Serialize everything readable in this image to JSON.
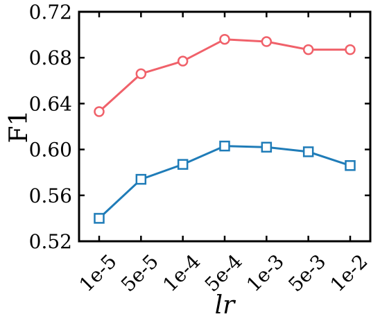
{
  "chart_data": {
    "type": "line",
    "title": "",
    "xlabel": "lr",
    "ylabel": "F1",
    "categories": [
      "1e-5",
      "5e-5",
      "1e-4",
      "5e-4",
      "1e-3",
      "5e-3",
      "1e-2"
    ],
    "ylim": [
      0.52,
      0.72
    ],
    "yticks": [
      "0.52",
      "0.56",
      "0.60",
      "0.64",
      "0.68",
      "0.72"
    ],
    "grid": false,
    "legend": "none",
    "series": [
      {
        "color": "#f0616a",
        "marker": "circle",
        "values": [
          0.633,
          0.666,
          0.677,
          0.696,
          0.694,
          0.687,
          0.687
        ]
      },
      {
        "color": "#1f7cb8",
        "marker": "square",
        "values": [
          0.54,
          0.574,
          0.587,
          0.603,
          0.602,
          0.598,
          0.586
        ]
      }
    ]
  }
}
